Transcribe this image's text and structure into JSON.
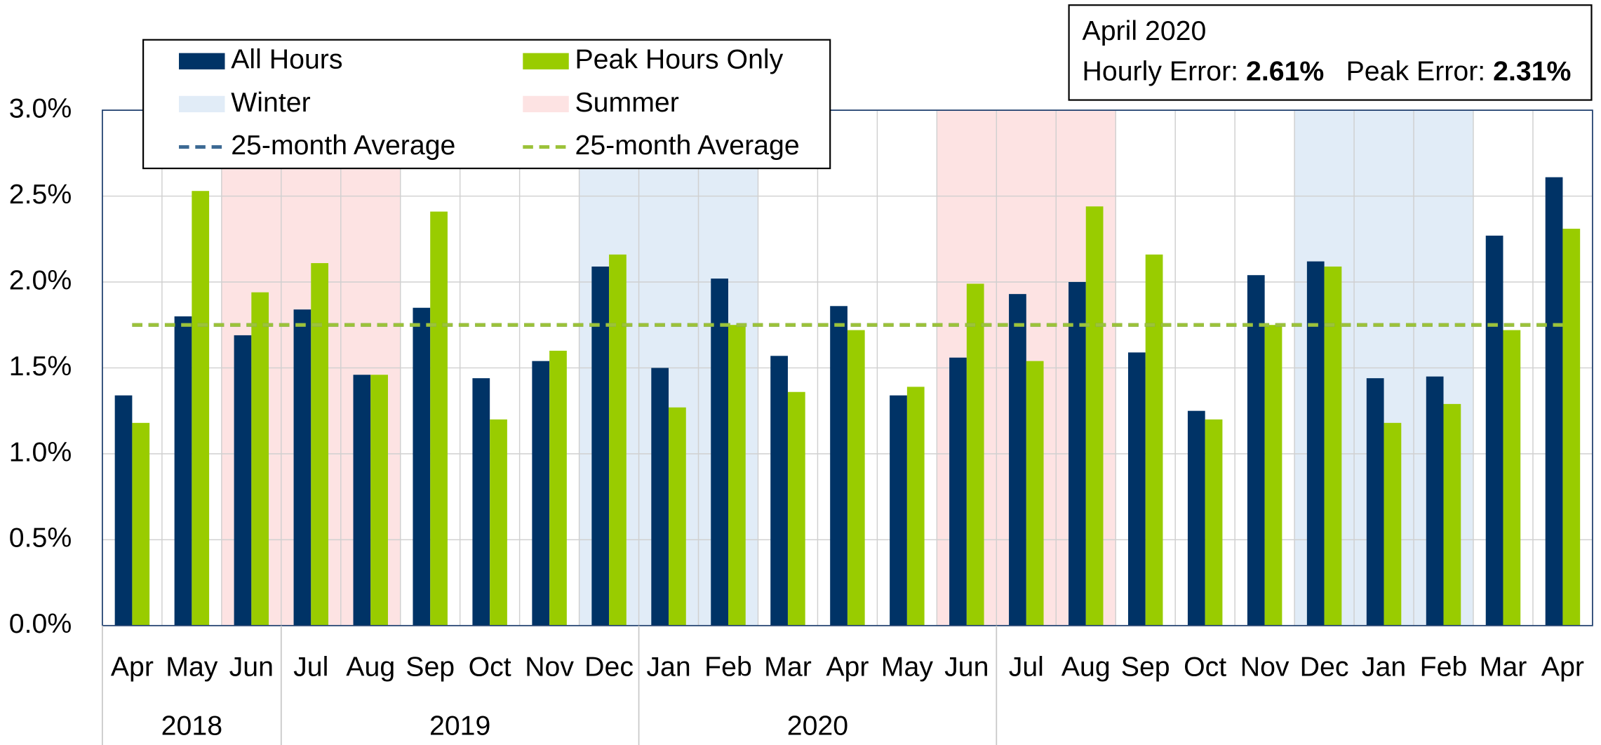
{
  "chart_data": {
    "type": "bar",
    "categories": [
      "Apr",
      "May",
      "Jun",
      "Jul",
      "Aug",
      "Sep",
      "Oct",
      "Nov",
      "Dec",
      "Jan",
      "Feb",
      "Mar",
      "Apr",
      "May",
      "Jun",
      "Jul",
      "Aug",
      "Sep",
      "Oct",
      "Nov",
      "Dec",
      "Jan",
      "Feb",
      "Mar",
      "Apr"
    ],
    "year_labels": [
      "2018",
      "2019",
      "2020"
    ],
    "season": [
      null,
      null,
      "Summer",
      "Summer",
      "Summer",
      null,
      null,
      null,
      "Winter",
      "Winter",
      "Winter",
      null,
      null,
      null,
      "Summer",
      "Summer",
      "Summer",
      null,
      null,
      null,
      "Winter",
      "Winter",
      "Winter",
      null,
      null
    ],
    "shading": [
      {
        "name": "Winter",
        "color": "#e1ecf7"
      },
      {
        "name": "Summer",
        "color": "#fde3e3"
      }
    ],
    "series": [
      {
        "name": "All Hours",
        "color": "#003366",
        "values": [
          1.34,
          1.8,
          1.69,
          1.84,
          1.46,
          1.85,
          1.44,
          1.54,
          2.09,
          1.5,
          2.02,
          1.57,
          1.86,
          1.34,
          1.56,
          1.93,
          2.0,
          1.59,
          1.25,
          2.04,
          2.12,
          1.44,
          1.45,
          2.27,
          2.61
        ]
      },
      {
        "name": "Peak Hours Only",
        "color": "#99cc00",
        "values": [
          1.18,
          2.53,
          1.94,
          2.11,
          1.46,
          2.41,
          1.2,
          1.6,
          2.16,
          1.27,
          1.75,
          1.36,
          1.72,
          1.39,
          1.99,
          1.54,
          2.44,
          2.16,
          1.2,
          1.75,
          2.09,
          1.18,
          1.29,
          1.72,
          2.31
        ]
      }
    ],
    "average_lines": [
      {
        "name": "25-month Average",
        "color": "#3d6a94",
        "value": 1.75
      },
      {
        "name": "25-month Average",
        "color": "#9cc23a",
        "value": 1.75
      }
    ],
    "ylim": [
      0,
      3.0
    ],
    "yticks": [
      {
        "value": 0,
        "label": "0.0%"
      },
      {
        "value": 0.5,
        "label": "0.5%"
      },
      {
        "value": 1.0,
        "label": "1.0%"
      },
      {
        "value": 1.5,
        "label": "1.5%"
      },
      {
        "value": 2.0,
        "label": "2.0%"
      },
      {
        "value": 2.5,
        "label": "2.5%"
      },
      {
        "value": 3.0,
        "label": "3.0%"
      }
    ],
    "grid": true,
    "annotation": {
      "title": "April 2020",
      "items": [
        {
          "label": "Hourly Error:",
          "value": "2.61%"
        },
        {
          "label": "Peak Error:",
          "value": "2.31%"
        }
      ]
    }
  }
}
